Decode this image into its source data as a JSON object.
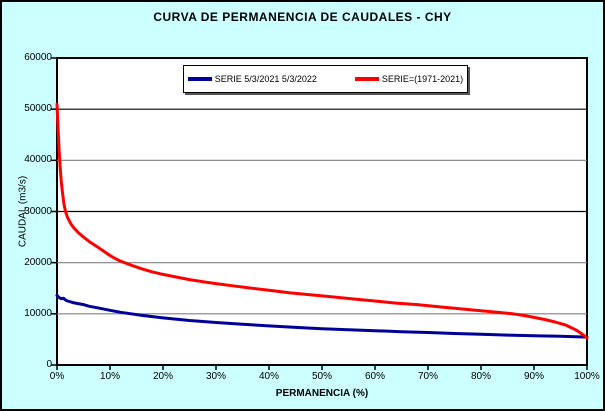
{
  "title": "CURVA DE PERMANENCIA DE CAUDALES - CHY",
  "colors": {
    "window_background": "#CCFFFF",
    "plot_background": "#FFFFFF",
    "border": "#000000",
    "series_blue": "#000099",
    "series_red": "#FF0000",
    "grid_gray": "#808080",
    "grid_black": "#000000"
  },
  "chart_data": {
    "type": "line",
    "title": "CURVA DE PERMANENCIA DE CAUDALES - CHY",
    "xlabel": "PERMANENCIA (%)",
    "ylabel": "CAUDAL (m3/s)",
    "xlim": [
      0,
      100
    ],
    "ylim": [
      0,
      60000
    ],
    "grid": "horizontal-major",
    "legend_position": "top-center-inside",
    "x_ticks": [
      {
        "label": "0%",
        "value": 0
      },
      {
        "label": "10%",
        "value": 10
      },
      {
        "label": "20%",
        "value": 20
      },
      {
        "label": "30%",
        "value": 30
      },
      {
        "label": "40%",
        "value": 40
      },
      {
        "label": "50%",
        "value": 50
      },
      {
        "label": "60%",
        "value": 60
      },
      {
        "label": "70%",
        "value": 70
      },
      {
        "label": "80%",
        "value": 80
      },
      {
        "label": "90%",
        "value": 90
      },
      {
        "label": "100%",
        "value": 100
      }
    ],
    "y_ticks": [
      {
        "label": "0",
        "value": 0
      },
      {
        "label": "10000",
        "value": 10000
      },
      {
        "label": "20000",
        "value": 20000
      },
      {
        "label": "30000",
        "value": 30000
      },
      {
        "label": "40000",
        "value": 40000
      },
      {
        "label": "50000",
        "value": 50000
      },
      {
        "label": "60000",
        "value": 60000
      }
    ],
    "y_gridlines": [
      {
        "value": 10000,
        "color": "#808080"
      },
      {
        "value": 20000,
        "color": "#808080"
      },
      {
        "value": 30000,
        "color": "#000000"
      },
      {
        "value": 40000,
        "color": "#808080"
      },
      {
        "value": 50000,
        "color": "#000000"
      }
    ],
    "series": [
      {
        "name": "SERIE 5/3/2021 5/3/2022",
        "color": "#000099",
        "points": [
          [
            0,
            13600
          ],
          [
            0.4,
            13200
          ],
          [
            0.8,
            12950
          ],
          [
            1.2,
            13050
          ],
          [
            1.6,
            12700
          ],
          [
            2,
            12500
          ],
          [
            3,
            12200
          ],
          [
            4,
            12000
          ],
          [
            5,
            11800
          ],
          [
            6,
            11500
          ],
          [
            8,
            11100
          ],
          [
            10,
            10700
          ],
          [
            12,
            10300
          ],
          [
            14,
            10000
          ],
          [
            16,
            9700
          ],
          [
            18,
            9450
          ],
          [
            20,
            9200
          ],
          [
            25,
            8700
          ],
          [
            30,
            8300
          ],
          [
            35,
            7950
          ],
          [
            40,
            7650
          ],
          [
            45,
            7350
          ],
          [
            50,
            7100
          ],
          [
            55,
            6900
          ],
          [
            60,
            6700
          ],
          [
            65,
            6500
          ],
          [
            70,
            6350
          ],
          [
            75,
            6150
          ],
          [
            80,
            6000
          ],
          [
            85,
            5850
          ],
          [
            90,
            5700
          ],
          [
            95,
            5600
          ],
          [
            100,
            5450
          ]
        ]
      },
      {
        "name": "SERIE=(1971-2021)",
        "color": "#FF0000",
        "points": [
          [
            0,
            51000
          ],
          [
            0.2,
            46000
          ],
          [
            0.4,
            42000
          ],
          [
            0.6,
            38500
          ],
          [
            0.8,
            36000
          ],
          [
            1,
            34000
          ],
          [
            1.3,
            31500
          ],
          [
            1.6,
            30000
          ],
          [
            2,
            28800
          ],
          [
            2.5,
            27800
          ],
          [
            3,
            27000
          ],
          [
            4,
            25900
          ],
          [
            5,
            25000
          ],
          [
            6,
            24200
          ],
          [
            7,
            23500
          ],
          [
            8,
            22800
          ],
          [
            9,
            22100
          ],
          [
            10,
            21400
          ],
          [
            11,
            20800
          ],
          [
            12,
            20300
          ],
          [
            14,
            19500
          ],
          [
            16,
            18800
          ],
          [
            18,
            18200
          ],
          [
            20,
            17700
          ],
          [
            22,
            17300
          ],
          [
            25,
            16700
          ],
          [
            28,
            16200
          ],
          [
            30,
            15900
          ],
          [
            33,
            15500
          ],
          [
            36,
            15100
          ],
          [
            40,
            14600
          ],
          [
            44,
            14100
          ],
          [
            48,
            13700
          ],
          [
            52,
            13300
          ],
          [
            56,
            12900
          ],
          [
            60,
            12500
          ],
          [
            64,
            12100
          ],
          [
            68,
            11800
          ],
          [
            72,
            11400
          ],
          [
            76,
            11000
          ],
          [
            80,
            10600
          ],
          [
            83,
            10300
          ],
          [
            86,
            10000
          ],
          [
            88,
            9700
          ],
          [
            90,
            9300
          ],
          [
            92,
            8900
          ],
          [
            94,
            8400
          ],
          [
            95,
            8100
          ],
          [
            96,
            7800
          ],
          [
            97,
            7300
          ],
          [
            98,
            6800
          ],
          [
            99,
            6100
          ],
          [
            99.5,
            5700
          ],
          [
            100,
            5300
          ]
        ]
      }
    ]
  }
}
